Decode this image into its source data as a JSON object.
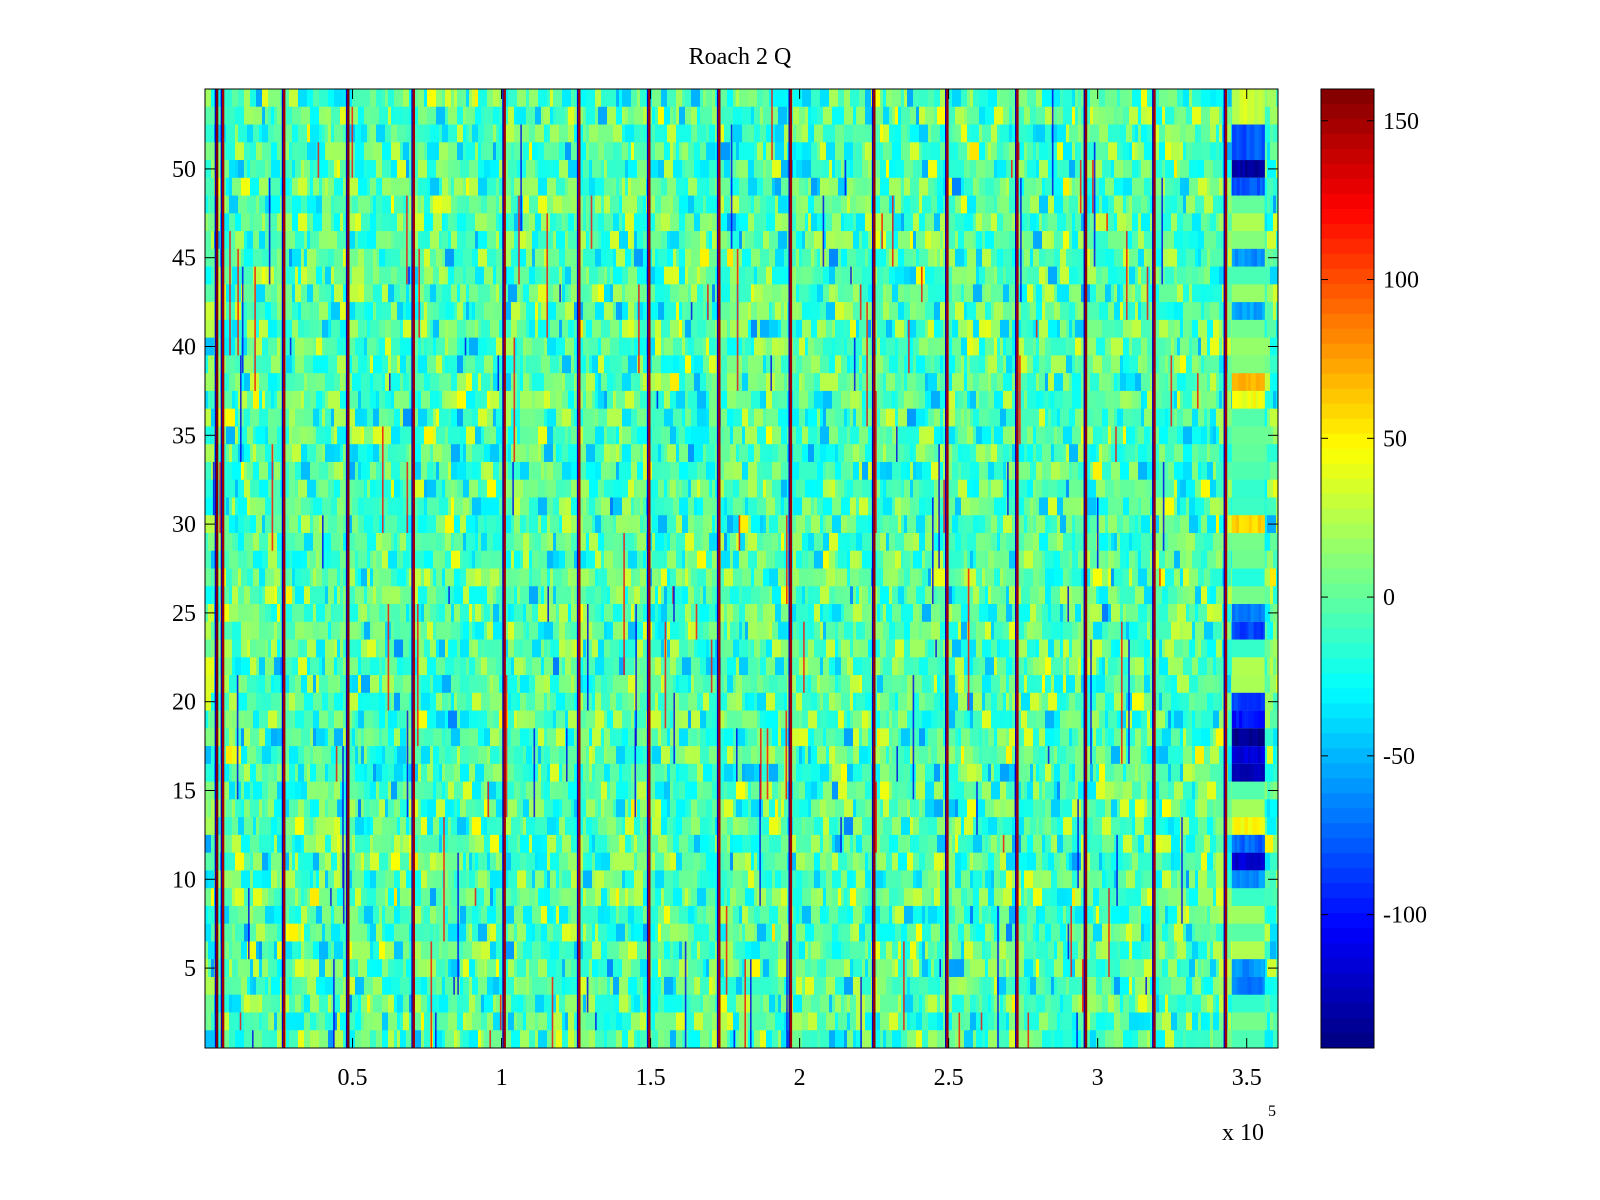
{
  "chart_data": {
    "type": "heatmap",
    "title": "Roach 2 Q",
    "xlabel": "",
    "ylabel": "",
    "x_axis": {
      "range": [
        500,
        360500
      ],
      "ticks": [
        50000,
        100000,
        150000,
        200000,
        250000,
        300000,
        350000
      ],
      "tick_labels": [
        "0.5",
        "1",
        "1.5",
        "2",
        "2.5",
        "3",
        "3.5"
      ],
      "exponent_label": "x 10",
      "exponent_power": "5"
    },
    "y_axis": {
      "range": [
        0.5,
        54.5
      ],
      "ticks": [
        5,
        10,
        15,
        20,
        25,
        30,
        35,
        40,
        45,
        50
      ],
      "tick_labels": [
        "5",
        "10",
        "15",
        "20",
        "25",
        "30",
        "35",
        "40",
        "45",
        "50"
      ]
    },
    "colorbar": {
      "colormap": "jet",
      "range": [
        -142,
        160
      ],
      "ticks": [
        150,
        100,
        50,
        0,
        -50,
        -100
      ],
      "tick_labels": [
        "150",
        "100",
        "50",
        "0",
        "-50",
        "-100"
      ]
    },
    "rows": 54,
    "background_range": [
      -40,
      30
    ],
    "vertical_stripes": [
      {
        "x": 4500,
        "value": 160
      },
      {
        "x": 6500,
        "value": 150
      },
      {
        "x": 27000,
        "value": 150
      },
      {
        "x": 48500,
        "value": 160
      },
      {
        "x": 70500,
        "value": 150
      },
      {
        "x": 101000,
        "value": 150
      },
      {
        "x": 126000,
        "value": 150
      },
      {
        "x": 149500,
        "value": 150
      },
      {
        "x": 173000,
        "value": 150
      },
      {
        "x": 197000,
        "value": 150
      },
      {
        "x": 225000,
        "value": 155
      },
      {
        "x": 249500,
        "value": 150
      },
      {
        "x": 273000,
        "value": 150
      },
      {
        "x": 296000,
        "value": 155
      },
      {
        "x": 319000,
        "value": 150
      },
      {
        "x": 343000,
        "value": 150
      }
    ],
    "edge_region": {
      "x_range": [
        345000,
        356000
      ],
      "segments": [
        {
          "y_range": [
            52.5,
            54.5
          ],
          "value": 30
        },
        {
          "y_range": [
            50.5,
            52.5
          ],
          "value": -80
        },
        {
          "y_range": [
            49.5,
            50.5
          ],
          "value": -130
        },
        {
          "y_range": [
            48.5,
            49.5
          ],
          "value": -80
        },
        {
          "y_range": [
            44.5,
            45.5
          ],
          "value": -60
        },
        {
          "y_range": [
            41.5,
            42.5
          ],
          "value": -55
        },
        {
          "y_range": [
            37.5,
            38.5
          ],
          "value": 70
        },
        {
          "y_range": [
            36.5,
            37.5
          ],
          "value": 45
        },
        {
          "y_range": [
            29.5,
            30.5
          ],
          "value": 60
        },
        {
          "y_range": [
            24.5,
            25.5
          ],
          "value": -65
        },
        {
          "y_range": [
            23.5,
            24.5
          ],
          "value": -85
        },
        {
          "y_range": [
            19.5,
            20.5
          ],
          "value": -85
        },
        {
          "y_range": [
            18.5,
            19.5
          ],
          "value": -100
        },
        {
          "y_range": [
            17.5,
            18.5
          ],
          "value": -140
        },
        {
          "y_range": [
            16.5,
            17.5
          ],
          "value": -115
        },
        {
          "y_range": [
            15.5,
            16.5
          ],
          "value": -130
        },
        {
          "y_range": [
            12.5,
            13.5
          ],
          "value": 45
        },
        {
          "y_range": [
            11.5,
            12.5
          ],
          "value": -75
        },
        {
          "y_range": [
            10.5,
            11.5
          ],
          "value": -120
        },
        {
          "y_range": [
            9.5,
            10.5
          ],
          "value": -60
        },
        {
          "y_range": [
            4.5,
            5.5
          ],
          "value": -60
        },
        {
          "y_range": [
            3.5,
            4.5
          ],
          "value": -70
        }
      ]
    },
    "grid": false,
    "legend": "none"
  }
}
